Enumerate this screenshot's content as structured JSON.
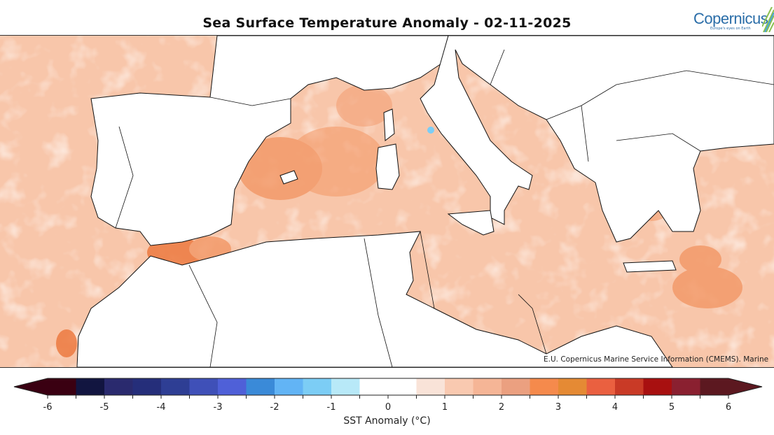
{
  "title": "Sea Surface Temperature Anomaly - 02-11-2025",
  "logo": {
    "text": "opernicus",
    "letter": "C",
    "tagline": "Europe's eyes on Earth"
  },
  "credit": "E.U. Copernicus Marine Service Information (CMEMS). Marine",
  "colorbar": {
    "label": "SST Anomaly (°C)",
    "range": [
      -6,
      6
    ],
    "extend": "both",
    "ticks": [
      "-6",
      "-5",
      "-4",
      "-3",
      "-2",
      "-1",
      "0",
      "1",
      "2",
      "3",
      "4",
      "5",
      "6"
    ],
    "bins": [
      {
        "from": -6,
        "to": -5.5,
        "color": "#3a0012"
      },
      {
        "from": -5.5,
        "to": -5,
        "color": "#121540"
      },
      {
        "from": -5,
        "to": -4.5,
        "color": "#2a2a6e"
      },
      {
        "from": -4.5,
        "to": -4,
        "color": "#252e7a"
      },
      {
        "from": -4,
        "to": -3.5,
        "color": "#2e3e94"
      },
      {
        "from": -3.5,
        "to": -3,
        "color": "#3f50b8"
      },
      {
        "from": -3,
        "to": -2.5,
        "color": "#4f60d8"
      },
      {
        "from": -2.5,
        "to": -2,
        "color": "#3a8ad8"
      },
      {
        "from": -2,
        "to": -1.5,
        "color": "#62b4f5"
      },
      {
        "from": -1.5,
        "to": -1,
        "color": "#7ccdf5"
      },
      {
        "from": -1,
        "to": -0.5,
        "color": "#b8e9f8"
      },
      {
        "from": -0.5,
        "to": 0.5,
        "color": "#ffffff"
      },
      {
        "from": 0.5,
        "to": 1,
        "color": "#f9e3d8"
      },
      {
        "from": 1,
        "to": 1.5,
        "color": "#f9c9b0"
      },
      {
        "from": 1.5,
        "to": 2,
        "color": "#f5b596"
      },
      {
        "from": 2,
        "to": 2.5,
        "color": "#eba080"
      },
      {
        "from": 2.5,
        "to": 3,
        "color": "#f58a4c"
      },
      {
        "from": 3,
        "to": 3.5,
        "color": "#e58a34"
      },
      {
        "from": 3.5,
        "to": 4,
        "color": "#ea6040"
      },
      {
        "from": 4,
        "to": 4.5,
        "color": "#c93a26"
      },
      {
        "from": 4.5,
        "to": 5,
        "color": "#a81010"
      },
      {
        "from": 5,
        "to": 5.5,
        "color": "#8a2030"
      },
      {
        "from": 5.5,
        "to": 6,
        "color": "#5c1820"
      }
    ]
  },
  "map": {
    "region": "Mediterranean Sea",
    "land_color": "#ffffff",
    "coast_color": "#111111",
    "dominant_anomaly_color": "#f9c4a8",
    "hotspot_color": "#f08a52"
  }
}
